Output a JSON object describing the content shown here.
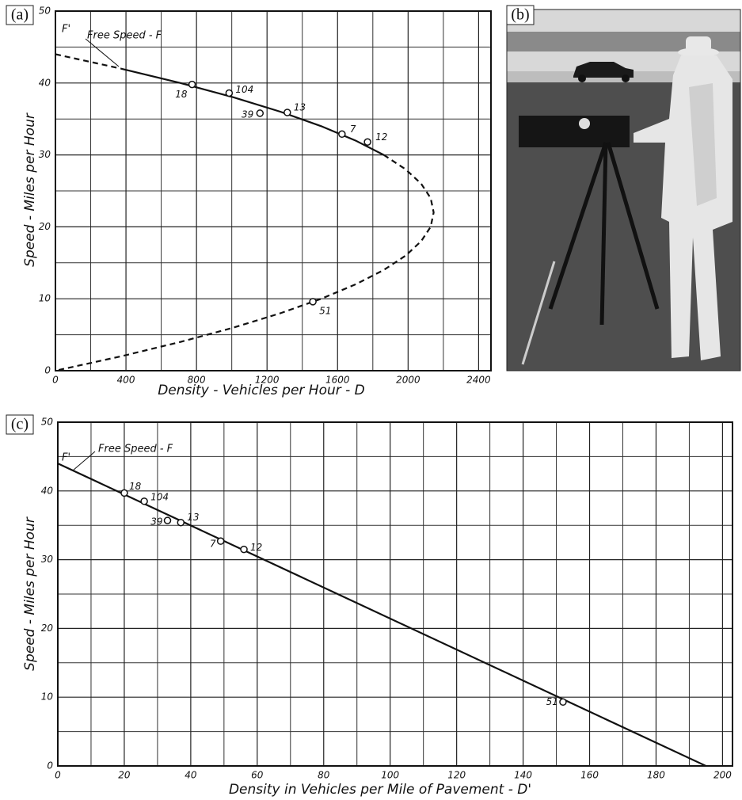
{
  "panels": {
    "photo_label": "(b)"
  },
  "chart_data": [
    {
      "type": "scatter",
      "panel_label": "(a)",
      "x_label": "Density - Vehicles per Hour - D",
      "y_label": "Speed - Miles per Hour",
      "annotations": [
        "F'",
        "Free Speed - F"
      ],
      "x": [
        775,
        985,
        1160,
        1315,
        1625,
        1770,
        1460
      ],
      "y": [
        39.8,
        38.6,
        35.8,
        35.9,
        32.9,
        31.8,
        9.6
      ],
      "point_labels": [
        "18",
        "104",
        "39",
        "13",
        "7",
        "12",
        "51"
      ],
      "color": "#111111",
      "series": [
        {
          "style": "dashed",
          "x": [
            0,
            372
          ],
          "y": [
            44,
            42
          ]
        },
        {
          "style": "solid",
          "x": [
            372,
            709,
            1011,
            1277,
            1507,
            1702,
            1862
          ],
          "y": [
            42,
            40,
            38,
            36,
            34,
            32,
            30
          ]
        },
        {
          "style": "dashed",
          "x": [
            1862,
            1986,
            2074,
            2128,
            2145,
            2128,
            2074,
            1986,
            1862,
            1702,
            1507,
            1277,
            1011,
            709,
            372,
            0
          ],
          "y": [
            30,
            28,
            26,
            24,
            22,
            20,
            18,
            16,
            14,
            12,
            10,
            8,
            6,
            4,
            2,
            0
          ]
        }
      ],
      "xlim": [
        0,
        2470
      ],
      "ylim": [
        0,
        50
      ],
      "xticks": [
        0,
        400,
        800,
        1200,
        1600,
        2000,
        2400
      ],
      "yticks": [
        0,
        10,
        20,
        30,
        40,
        50
      ],
      "x_minor_ticks": [
        200,
        600,
        1000,
        1400,
        1800,
        2200
      ],
      "y_minor_ticks": [
        5,
        15,
        25,
        35,
        45
      ],
      "grid": true
    },
    {
      "type": "scatter",
      "panel_label": "(c)",
      "x_label": "Density in Vehicles per Mile of Pavement - D'",
      "y_label": "Speed - Miles per Hour",
      "annotations": [
        "F'",
        "Free Speed - F"
      ],
      "x": [
        20,
        26,
        33,
        37,
        49,
        56,
        152
      ],
      "y": [
        39.7,
        38.5,
        35.7,
        35.4,
        32.7,
        31.5,
        9.3
      ],
      "point_labels": [
        "18",
        "104",
        "39",
        "13",
        "7",
        "12",
        "51"
      ],
      "color": "#111111",
      "series": [
        {
          "style": "solid",
          "x": [
            0,
            195
          ],
          "y": [
            44,
            0
          ]
        }
      ],
      "xlim": [
        0,
        203
      ],
      "ylim": [
        0,
        50
      ],
      "xticks": [
        0,
        20,
        40,
        60,
        80,
        100,
        120,
        140,
        160,
        180,
        200
      ],
      "yticks": [
        0,
        10,
        20,
        30,
        40,
        50
      ],
      "x_minor_ticks": [
        10,
        30,
        50,
        70,
        90,
        110,
        130,
        150,
        170,
        190
      ],
      "y_minor_ticks": [
        5,
        15,
        25,
        35,
        45
      ],
      "grid": true
    }
  ]
}
